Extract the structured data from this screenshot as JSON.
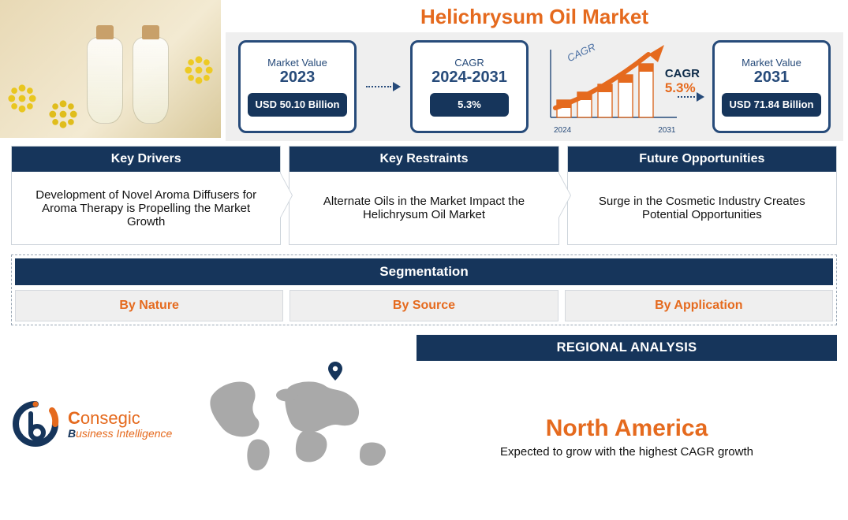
{
  "title": "Helichrysum Oil Market",
  "colors": {
    "accent_orange": "#e56a1e",
    "navy": "#16355b",
    "navy_border": "#274b7a",
    "panel_grey": "#efefef",
    "card_border": "#cdd4db",
    "dash_border": "#9aa7b5",
    "map_grey": "#a9a9a9"
  },
  "metrics": {
    "left": {
      "label": "Market Value",
      "year": "2023",
      "value": "USD 50.10 Billion"
    },
    "middle": {
      "label": "CAGR",
      "year": "2024-2031",
      "value": "5.3%"
    },
    "right": {
      "label": "Market Value",
      "year": "2031",
      "value": "USD 71.84 Billion"
    },
    "chart": {
      "cagr_word": "CAGR",
      "cagr_value": "5.3%",
      "cursive": "CAGR",
      "x_start": "2024",
      "x_end": "2031",
      "bar_color": "#e56a1e",
      "bar_outline": "#d85f15",
      "arrow_color": "#e56a1e",
      "bars": [
        22,
        32,
        42,
        54,
        68
      ]
    }
  },
  "drivers": [
    {
      "title": "Key Drivers",
      "text": "Development of Novel Aroma Diffusers for Aroma Therapy is Propelling the Market Growth"
    },
    {
      "title": "Key Restraints",
      "text": "Alternate Oils in the Market Impact the Helichrysum Oil Market"
    },
    {
      "title": "Future Opportunities",
      "text": "Surge in the Cosmetic Industry Creates Potential Opportunities"
    }
  ],
  "segmentation": {
    "title": "Segmentation",
    "items": [
      "By Nature",
      "By Source",
      "By Application"
    ]
  },
  "brand": {
    "word1": "C",
    "word1b": "onsegic",
    "line2a": "B",
    "line2b": "usiness Intelligence"
  },
  "regional": {
    "header": "REGIONAL ANALYSIS",
    "region": "North America",
    "sub": "Expected to grow with the highest CAGR growth"
  }
}
